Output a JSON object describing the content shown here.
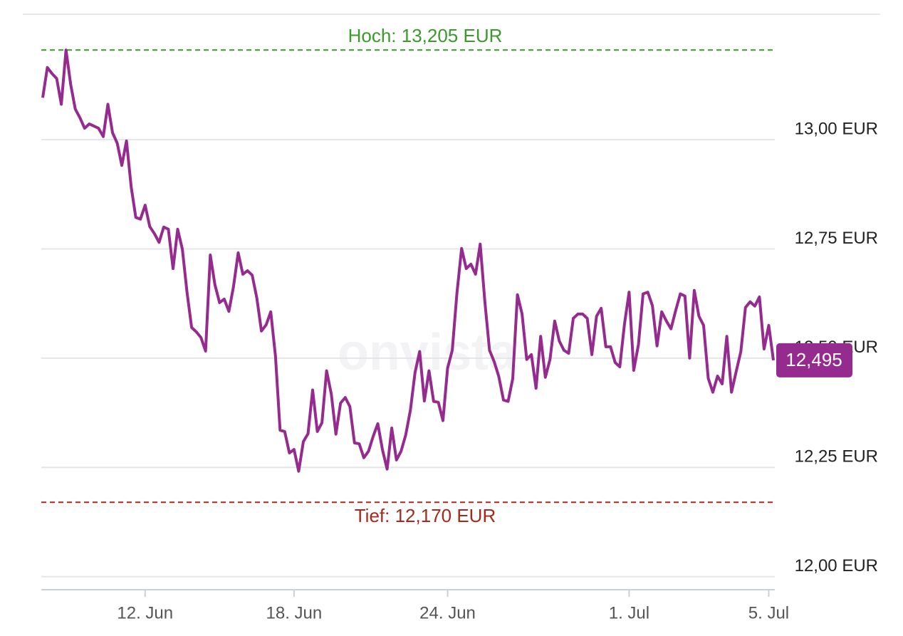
{
  "chart_data": {
    "type": "line",
    "watermark": "onvista",
    "categories": [
      null,
      null,
      null,
      null,
      null,
      null,
      null,
      null,
      null,
      null,
      null,
      null,
      null,
      null,
      null,
      null,
      null,
      null,
      null,
      null,
      null,
      null,
      "12. Jun",
      null,
      null,
      null,
      null,
      null,
      null,
      null,
      null,
      null,
      null,
      null,
      null,
      null,
      null,
      null,
      null,
      null,
      null,
      null,
      null,
      null,
      null,
      null,
      null,
      null,
      null,
      null,
      null,
      null,
      null,
      null,
      "18. Jun",
      null,
      null,
      null,
      null,
      null,
      null,
      null,
      null,
      null,
      null,
      null,
      null,
      null,
      null,
      null,
      null,
      null,
      null,
      null,
      null,
      null,
      null,
      null,
      null,
      null,
      null,
      null,
      null,
      null,
      null,
      null,
      null,
      "24. Jun",
      null,
      null,
      null,
      null,
      null,
      null,
      null,
      null,
      null,
      null,
      null,
      null,
      null,
      null,
      null,
      null,
      null,
      null,
      null,
      null,
      null,
      null,
      null,
      null,
      null,
      null,
      null,
      null,
      null,
      null,
      null,
      null,
      null,
      null,
      null,
      null,
      null,
      null,
      "1. Jul",
      null,
      null,
      null,
      null,
      null,
      null,
      null,
      null,
      null,
      null,
      null,
      null,
      null,
      null,
      null,
      null,
      null,
      null,
      null,
      null,
      null,
      null,
      null,
      null,
      null,
      null,
      null,
      null,
      null,
      "5. Jul",
      null
    ],
    "series": [
      {
        "color": "#952a8f",
        "last_value_label": "12,495",
        "values": [
          13.096,
          13.165,
          13.151,
          13.14,
          13.081,
          13.205,
          13.127,
          13.07,
          13.05,
          13.026,
          13.036,
          13.031,
          13.026,
          13.007,
          13.081,
          13.016,
          12.992,
          12.941,
          12.997,
          12.892,
          12.822,
          12.818,
          12.85,
          12.801,
          12.785,
          12.765,
          12.8,
          12.795,
          12.705,
          12.795,
          12.749,
          12.651,
          12.57,
          12.56,
          12.547,
          12.516,
          12.736,
          12.668,
          12.627,
          12.635,
          12.607,
          12.664,
          12.741,
          12.692,
          12.7,
          12.69,
          12.638,
          12.562,
          12.576,
          12.606,
          12.505,
          12.335,
          12.332,
          12.283,
          12.291,
          12.241,
          12.309,
          12.327,
          12.427,
          12.332,
          12.352,
          12.471,
          12.418,
          12.326,
          12.397,
          12.41,
          12.389,
          12.306,
          12.304,
          12.272,
          12.287,
          12.321,
          12.35,
          12.29,
          12.246,
          12.34,
          12.267,
          12.287,
          12.324,
          12.381,
          12.467,
          12.515,
          12.402,
          12.471,
          12.401,
          12.399,
          12.357,
          12.477,
          12.518,
          12.648,
          12.751,
          12.705,
          12.715,
          12.692,
          12.761,
          12.63,
          12.518,
          12.492,
          12.458,
          12.404,
          12.401,
          12.453,
          12.645,
          12.601,
          12.497,
          12.508,
          12.431,
          12.55,
          12.456,
          12.497,
          12.585,
          12.539,
          12.518,
          12.511,
          12.591,
          12.601,
          12.601,
          12.591,
          12.508,
          12.596,
          12.614,
          12.526,
          12.526,
          12.49,
          12.48,
          12.578,
          12.651,
          12.472,
          12.531,
          12.647,
          12.651,
          12.62,
          12.528,
          12.606,
          12.585,
          12.567,
          12.609,
          12.647,
          12.642,
          12.5,
          12.655,
          12.596,
          12.575,
          12.454,
          12.422,
          12.459,
          12.441,
          12.55,
          12.422,
          12.469,
          12.515,
          12.616,
          12.629,
          12.619,
          12.64,
          12.521,
          12.575,
          12.495
        ]
      }
    ],
    "ylim": [
      11.97,
      13.287
    ],
    "yticks": [
      {
        "value": 12,
        "label": "12,00 EUR"
      },
      {
        "value": 12.25,
        "label": "12,25 EUR"
      },
      {
        "value": 12.5,
        "label": "12,50 EUR"
      },
      {
        "value": 12.75,
        "label": "12,75 EUR"
      },
      {
        "value": 13,
        "label": "13,00 EUR"
      }
    ],
    "grid": true,
    "reference_lines": [
      {
        "label": "Hoch: 13,205 EUR",
        "value": 13.205,
        "color": "#3a9a2a"
      },
      {
        "label": "Tief: 12,170 EUR",
        "value": 12.17,
        "color": "#a8291c"
      }
    ]
  }
}
